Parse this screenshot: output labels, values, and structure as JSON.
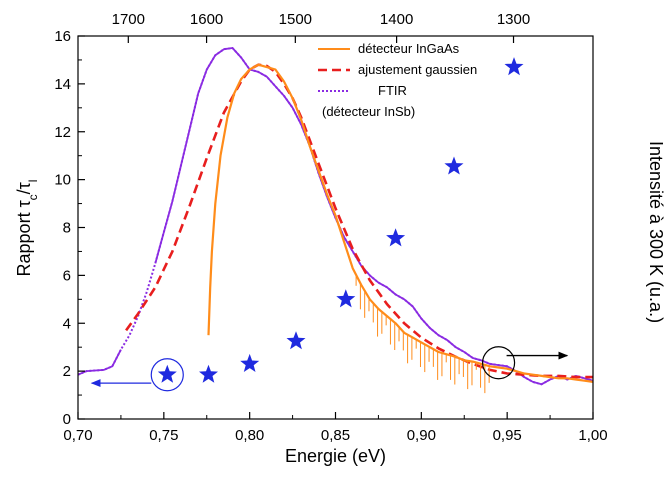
{
  "chart_data": {
    "type": "line",
    "xlabel": "Energie (eV)",
    "ylabel_main": "Rapport τ",
    "ylabel_sub1": "c",
    "ylabel_mid": "/τ",
    "ylabel_sub2": "l",
    "y2label": "Intensité à 300 K (u.a.)",
    "xlim": [
      0.7,
      1.0
    ],
    "ylim": [
      0,
      16
    ],
    "x_ticks": [
      0.7,
      0.75,
      0.8,
      0.85,
      0.9,
      0.95,
      1.0
    ],
    "x_tick_labels": [
      "0,70",
      "0,75",
      "0,80",
      "0,85",
      "0,90",
      "0,95",
      "1,00"
    ],
    "y_ticks": [
      0,
      2,
      4,
      6,
      8,
      10,
      12,
      14,
      16
    ],
    "y_tick_labels": [
      "0",
      "2",
      "4",
      "6",
      "8",
      "10",
      "12",
      "14",
      "16"
    ],
    "top_axis_label": "",
    "top_ticks": [
      {
        "label": "1700",
        "energy": 0.7293
      },
      {
        "label": "1600",
        "energy": 0.7749
      },
      {
        "label": "1500",
        "energy": 0.8266
      },
      {
        "label": "1400",
        "energy": 0.8856
      },
      {
        "label": "1300",
        "energy": 0.9537
      }
    ],
    "legend": [
      {
        "label": "détecteur InGaAs",
        "color": "#ff8c1a",
        "style": "solid"
      },
      {
        "label": "ajustement gaussien",
        "color": "#e81e1e",
        "style": "dashed"
      },
      {
        "label": "FTIR",
        "color": "#8a2be2",
        "style": "dotted"
      },
      {
        "label": "(détecteur InSb)",
        "color": "",
        "style": "none"
      }
    ],
    "series": [
      {
        "kind": "stars",
        "color": "#1f2adf",
        "x": [
          0.752,
          0.776,
          0.8,
          0.827,
          0.856,
          0.885,
          0.919,
          0.954
        ],
        "y": [
          1.85,
          1.85,
          2.3,
          3.25,
          5.0,
          7.55,
          10.55,
          14.7
        ]
      },
      {
        "kind": "ftir",
        "color": "#8a2be2",
        "x": [
          0.7,
          0.705,
          0.715,
          0.72,
          0.725,
          0.73,
          0.735,
          0.74,
          0.745,
          0.75,
          0.755,
          0.76,
          0.765,
          0.77,
          0.775,
          0.78,
          0.785,
          0.79,
          0.795,
          0.8,
          0.805,
          0.81,
          0.815,
          0.82,
          0.825,
          0.83,
          0.835,
          0.84,
          0.845,
          0.85,
          0.855,
          0.86,
          0.865,
          0.87,
          0.875,
          0.88,
          0.885,
          0.89,
          0.895,
          0.9,
          0.905,
          0.91,
          0.915,
          0.92,
          0.925,
          0.93,
          0.935,
          0.94,
          0.945,
          0.95,
          0.955,
          0.96,
          0.965,
          0.97,
          0.975,
          0.98,
          0.985,
          0.99,
          0.995,
          1.0
        ],
        "y": [
          1.85,
          2.0,
          2.05,
          2.2,
          2.9,
          3.5,
          4.3,
          5.3,
          6.5,
          7.8,
          9.1,
          10.6,
          12.1,
          13.6,
          14.6,
          15.2,
          15.45,
          15.5,
          15.1,
          14.6,
          14.5,
          14.3,
          13.9,
          13.5,
          13.0,
          12.3,
          11.4,
          10.3,
          9.3,
          8.4,
          7.6,
          7.0,
          6.4,
          6.0,
          5.7,
          5.5,
          5.2,
          5.0,
          4.7,
          4.2,
          3.8,
          3.5,
          3.3,
          3.0,
          2.8,
          2.55,
          2.45,
          2.3,
          2.25,
          2.2,
          2.0,
          1.75,
          1.55,
          1.45,
          1.65,
          1.8,
          1.65,
          1.8,
          1.7,
          1.6
        ]
      },
      {
        "kind": "gauss",
        "color": "#e81e1e",
        "x": [
          0.728,
          0.735,
          0.745,
          0.755,
          0.765,
          0.775,
          0.785,
          0.795,
          0.8,
          0.805,
          0.81,
          0.815,
          0.82,
          0.825,
          0.83,
          0.84,
          0.85,
          0.86,
          0.87,
          0.88,
          0.89,
          0.9,
          0.91,
          0.92,
          0.93,
          0.94,
          0.95,
          0.96,
          0.97,
          0.98,
          0.99,
          1.0
        ],
        "y": [
          3.7,
          4.4,
          5.5,
          7.0,
          8.9,
          10.9,
          12.8,
          14.1,
          14.6,
          14.8,
          14.75,
          14.5,
          14.0,
          13.4,
          12.6,
          10.7,
          8.8,
          7.1,
          5.8,
          4.8,
          4.0,
          3.4,
          2.95,
          2.6,
          2.3,
          2.05,
          1.9,
          1.85,
          1.8,
          1.8,
          1.75,
          1.75
        ]
      },
      {
        "kind": "ingaas",
        "color": "#ff8c1a",
        "x": [
          0.776,
          0.777,
          0.778,
          0.78,
          0.783,
          0.787,
          0.791,
          0.795,
          0.8,
          0.805,
          0.81,
          0.815,
          0.82,
          0.825,
          0.83,
          0.835,
          0.84,
          0.845,
          0.85,
          0.855,
          0.86,
          0.865,
          0.87,
          0.875,
          0.88,
          0.885,
          0.89,
          0.895,
          0.9,
          0.905,
          0.91,
          0.915,
          0.92,
          0.925,
          0.93,
          0.935,
          0.94,
          0.945,
          0.95,
          0.955,
          0.96,
          0.965,
          0.97,
          0.975,
          0.98,
          0.985,
          0.99,
          0.995,
          1.0
        ],
        "y": [
          3.5,
          5.5,
          7.0,
          9.0,
          11.0,
          12.6,
          13.6,
          14.2,
          14.6,
          14.8,
          14.7,
          14.6,
          14.1,
          13.4,
          12.5,
          11.4,
          10.4,
          9.4,
          8.5,
          7.4,
          6.3,
          5.6,
          5.0,
          4.6,
          4.3,
          4.0,
          3.6,
          3.4,
          3.2,
          3.0,
          2.8,
          2.7,
          2.6,
          2.45,
          2.4,
          2.3,
          2.2,
          2.15,
          2.1,
          2.0,
          1.9,
          1.85,
          1.8,
          1.75,
          1.7,
          1.7,
          1.65,
          1.6,
          1.55
        ]
      }
    ],
    "annotations": [
      {
        "kind": "circle-arrow",
        "cx": 0.752,
        "cy": 1.85,
        "arrow_to_x": 0.708,
        "arrow_y": 1.5,
        "direction": "left"
      },
      {
        "kind": "circle-arrow",
        "cx": 0.945,
        "cy": 2.35,
        "arrow_to_x": 0.985,
        "arrow_y": 2.65,
        "direction": "right"
      }
    ]
  }
}
